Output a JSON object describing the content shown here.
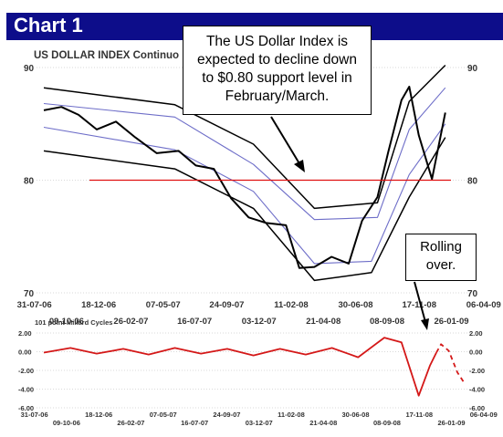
{
  "header": {
    "title": "Chart 1"
  },
  "callout": {
    "lines": [
      "The US Dollar Index is",
      "expected to decline down",
      "to $0.80 support level in",
      "February/March."
    ]
  },
  "rolling_callout": {
    "lines": [
      "Rolling",
      "over."
    ]
  },
  "colors": {
    "header_bg": "#0d0d8a",
    "price": "#000000",
    "channel_outer": "#000000",
    "channel_inner": "#6d6dc8",
    "support": "#e01010",
    "oscillator": "#d41818",
    "grid": "#b5b5b5"
  },
  "chart_data": [
    {
      "type": "line",
      "title": "US DOLLAR INDEX Continuo",
      "y_ticks": [
        "90",
        "80",
        "70"
      ],
      "ylim": [
        70,
        90
      ],
      "x_ticks_top": [
        "31-07-06",
        "18-12-06",
        "07-05-07",
        "24-09-07",
        "11-02-08",
        "30-06-08",
        "17-11-08",
        "06-04-09"
      ],
      "x_ticks_bottom": [
        "09-10-06",
        "26-02-07",
        "16-07-07",
        "03-12-07",
        "21-04-08",
        "08-09-08",
        "26-01-09"
      ],
      "support_level": 80,
      "series": [
        {
          "x": [
            "2006-07-31",
            "2006-09-10",
            "2006-10-20",
            "2006-12-01",
            "2007-01-15",
            "2007-03-01",
            "2007-04-20",
            "2007-06-10",
            "2007-07-20",
            "2007-08-31",
            "2007-10-10",
            "2007-11-20",
            "2007-12-31",
            "2008-02-15",
            "2008-03-17",
            "2008-04-21",
            "2008-05-31",
            "2008-07-10",
            "2008-08-10",
            "2008-09-15",
            "2008-10-10",
            "2008-11-10",
            "2008-11-28",
            "2008-12-20",
            "2009-01-20",
            "2009-02-20"
          ],
          "values": [
            86.2,
            86.5,
            85.8,
            84.5,
            85.2,
            83.8,
            82.4,
            82.6,
            81.3,
            81.0,
            78.4,
            76.7,
            76.2,
            76.0,
            72.2,
            72.3,
            73.2,
            72.6,
            76.4,
            78.5,
            82.5,
            87.1,
            88.3,
            84.0,
            80.1,
            86.0
          ]
        }
      ],
      "channel": {
        "outer_upper": {
          "x": [
            "2006-07-31",
            "2007-06-01",
            "2007-12-01",
            "2008-04-21",
            "2008-09-15",
            "2008-11-28",
            "2009-02-20"
          ],
          "values": [
            88.2,
            86.7,
            83.2,
            77.5,
            78.0,
            87.0,
            90.2
          ]
        },
        "outer_lower": {
          "x": [
            "2006-07-31",
            "2007-06-01",
            "2007-12-01",
            "2008-04-21",
            "2008-09-01",
            "2008-11-28",
            "2009-02-20"
          ],
          "values": [
            82.6,
            81.0,
            77.5,
            71.1,
            71.8,
            78.5,
            83.8
          ]
        },
        "inner_upper": {
          "x": [
            "2006-07-31",
            "2007-06-01",
            "2007-12-01",
            "2008-04-21",
            "2008-09-15",
            "2008-11-28",
            "2009-02-20"
          ],
          "values": [
            86.8,
            85.6,
            81.4,
            76.5,
            76.7,
            84.5,
            88.2
          ]
        },
        "inner_lower": {
          "x": [
            "2006-07-31",
            "2007-06-01",
            "2007-12-01",
            "2008-04-21",
            "2008-09-01",
            "2008-11-28",
            "2009-02-20"
          ],
          "values": [
            84.7,
            82.7,
            79.0,
            72.6,
            72.8,
            80.5,
            85.0
          ]
        }
      }
    },
    {
      "type": "line",
      "title": "101 point Millard Cycles",
      "y_ticks": [
        "2.00",
        "0.00",
        "-2.00",
        "-4.00",
        "-6.00"
      ],
      "ylim": [
        -6,
        2
      ],
      "x_ticks_top": [
        "31-07-06",
        "18-12-06",
        "07-05-07",
        "24-09-07",
        "11-02-08",
        "30-06-08",
        "17-11-08",
        "06-04-09"
      ],
      "x_ticks_bottom": [
        "09-10-06",
        "26-02-07",
        "16-07-07",
        "03-12-07",
        "21-04-08",
        "08-09-08",
        "26-01-09"
      ],
      "series": [
        {
          "x": [
            "2006-07-31",
            "2006-10-01",
            "2006-12-01",
            "2007-02-01",
            "2007-04-01",
            "2007-06-01",
            "2007-08-01",
            "2007-10-01",
            "2007-12-01",
            "2008-02-01",
            "2008-04-01",
            "2008-06-01",
            "2008-08-01",
            "2008-10-01",
            "2008-11-10",
            "2008-12-20",
            "2009-01-15",
            "2009-01-30"
          ],
          "values": [
            -0.1,
            0.4,
            -0.2,
            0.3,
            -0.3,
            0.4,
            -0.2,
            0.3,
            -0.4,
            0.3,
            -0.3,
            0.4,
            -0.6,
            1.5,
            1.0,
            -4.7,
            -1.5,
            -0.1
          ]
        },
        {
          "x": [
            "2009-01-30",
            "2009-02-10",
            "2009-02-28",
            "2009-03-20",
            "2009-04-06"
          ],
          "values": [
            -0.1,
            0.8,
            0.1,
            -2.2,
            -3.4
          ]
        }
      ]
    }
  ]
}
